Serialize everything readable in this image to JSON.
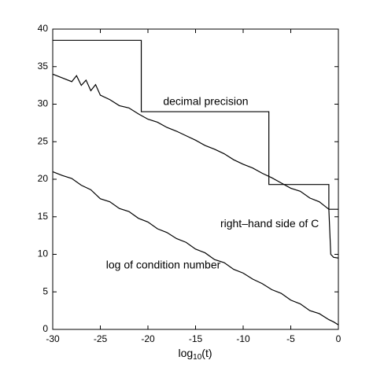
{
  "chart_data": {
    "type": "line",
    "xlabel": [
      "log",
      "10",
      "(t)"
    ],
    "xlim": [
      -30,
      0
    ],
    "xticks": [
      -30,
      -25,
      -20,
      -15,
      -10,
      -5,
      0
    ],
    "ylim": [
      0,
      40
    ],
    "yticks": [
      0,
      5,
      10,
      15,
      20,
      25,
      30,
      35,
      40
    ],
    "grid": false,
    "series": [
      {
        "name": "decimal precision",
        "color": "#000000",
        "x": [
          -30,
          -20.7,
          -20.7,
          -7.3,
          -7.3,
          -1,
          -1,
          0
        ],
        "values": [
          38.5,
          38.5,
          29,
          29,
          19.3,
          19.3,
          16,
          16
        ]
      },
      {
        "name": "right-hand side of C",
        "color": "#000000",
        "x": [
          -30,
          -29,
          -28,
          -27.5,
          -27,
          -26.5,
          -26,
          -25.5,
          -25,
          -24,
          -23,
          -22,
          -21,
          -20,
          -19,
          -18,
          -17,
          -16,
          -15,
          -14,
          -13,
          -12,
          -11,
          -10,
          -9,
          -8,
          -7,
          -6,
          -5,
          -4,
          -3,
          -2,
          -1.5,
          -1,
          -0.8,
          -0.5,
          0
        ],
        "values": [
          34,
          33.5,
          33,
          33.8,
          32.5,
          33.2,
          31.8,
          32.6,
          31.2,
          30.6,
          29.8,
          29.5,
          28.7,
          28,
          27.6,
          26.9,
          26.4,
          25.8,
          25.2,
          24.5,
          24,
          23.4,
          22.6,
          22,
          21.5,
          20.8,
          20.2,
          19.5,
          18.8,
          18.4,
          17.5,
          17,
          16.5,
          16,
          10,
          9.6,
          9.5
        ]
      },
      {
        "name": "log of condition number",
        "color": "#000000",
        "x": [
          -30,
          -29,
          -28,
          -27,
          -26,
          -25,
          -24,
          -23,
          -22,
          -21,
          -20,
          -19,
          -18,
          -17,
          -16,
          -15,
          -14,
          -13,
          -12,
          -11,
          -10,
          -9,
          -8,
          -7,
          -6,
          -5,
          -4,
          -3,
          -2,
          -1,
          -0.5,
          0
        ],
        "values": [
          21,
          20.5,
          20.1,
          19.2,
          18.6,
          17.4,
          17,
          16.1,
          15.7,
          14.8,
          14.3,
          13.4,
          12.9,
          12.1,
          11.6,
          10.7,
          10.2,
          9.3,
          8.9,
          8.0,
          7.5,
          6.7,
          6.1,
          5.3,
          4.8,
          3.9,
          3.4,
          2.5,
          2.1,
          1.3,
          1.0,
          0.6
        ]
      }
    ],
    "annotations": [
      {
        "text": "decimal precision",
        "x": -18.4,
        "y": 30.3
      },
      {
        "text": "right–hand side of C",
        "x": -12.4,
        "y": 14
      },
      {
        "text": "log of condition number",
        "x": -24.4,
        "y": 8.5
      }
    ]
  }
}
